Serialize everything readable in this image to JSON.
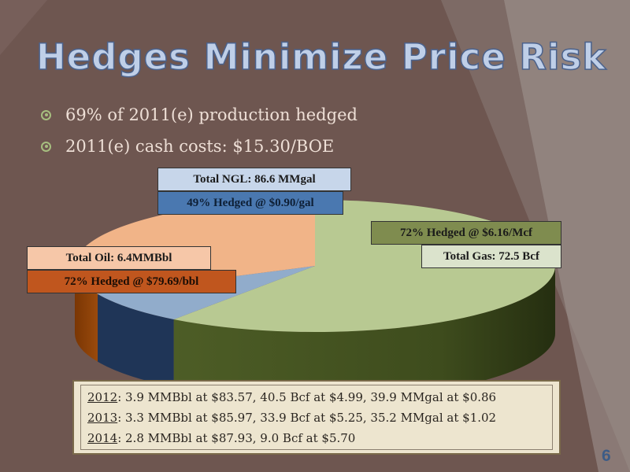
{
  "title": "Hedges Minimize Price Risk",
  "bullets": [
    "69% of 2011(e) production hedged",
    "2011(e) cash costs: $15.30/BOE"
  ],
  "chart_data": {
    "type": "pie",
    "slices": [
      {
        "name": "Gas",
        "value": 60,
        "color": "#4b5a26",
        "top_color": "#b8c992"
      },
      {
        "name": "NGL",
        "value": 8,
        "color": "#1f3557",
        "top_color": "#91accb"
      },
      {
        "name": "Oil",
        "value": 32,
        "color": "#8a3f06",
        "top_color": "#f1b488"
      }
    ],
    "labels": {
      "ngl_total": "Total NGL: 86.6 MMgal",
      "ngl_hedged": "49% Hedged @ $0.90/gal",
      "gas_hedged": "72% Hedged @ $6.16/Mcf",
      "gas_total": "Total Gas:  72.5 Bcf",
      "oil_total": "Total Oil:  6.4MMBbl",
      "oil_hedged": "72% Hedged @ $79.69/bbl"
    },
    "label_colors": {
      "ngl_total_bg": "#c7d6ea",
      "ngl_hedged_bg": "#4a78b0",
      "gas_hedged_bg": "#7f8c4f",
      "gas_total_bg": "#dbe3cc",
      "oil_total_bg": "#f6c7a8",
      "oil_hedged_bg": "#c0561e"
    }
  },
  "schedule": [
    {
      "year": "2012",
      "text": ": 3.9 MMBbl at $83.57, 40.5 Bcf at $4.99, 39.9 MMgal at $0.86"
    },
    {
      "year": "2013",
      "text": ": 3.3 MMBbl at $85.97, 33.9 Bcf at $5.25, 35.2 MMgal at $1.02"
    },
    {
      "year": "2014",
      "text": ": 2.8 MMBbl at $87.93, 9.0 Bcf at $5.70"
    }
  ],
  "page_number": "6"
}
